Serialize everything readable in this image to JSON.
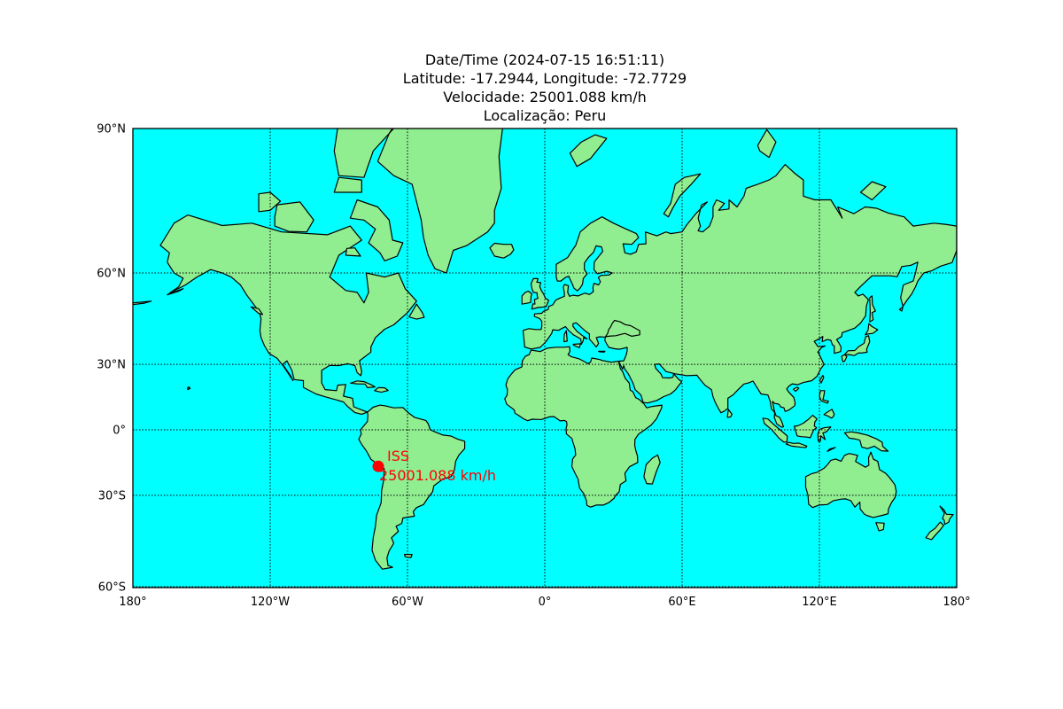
{
  "title": {
    "lines": [
      "Date/Time (2024-07-15 16:51:11)",
      "Latitude: -17.2944, Longitude: -72.7729",
      "Velocidade: 25001.088 km/h",
      "Localização: Peru"
    ]
  },
  "map": {
    "projection": "mercator",
    "lon_range": [
      -180,
      180
    ],
    "lat_range": [
      -60,
      90
    ],
    "ocean_color": "#00ffff",
    "land_color": "#90ee90",
    "coast_color": "#000000",
    "grid": "dotted",
    "lat_ticks": [
      {
        "value": 90,
        "label": "90°N"
      },
      {
        "value": 60,
        "label": "60°N"
      },
      {
        "value": 30,
        "label": "30°N"
      },
      {
        "value": 0,
        "label": "0°"
      },
      {
        "value": -30,
        "label": "30°S"
      },
      {
        "value": -60,
        "label": "60°S"
      }
    ],
    "lon_ticks": [
      {
        "value": -180,
        "label": "180°"
      },
      {
        "value": -120,
        "label": "120°W"
      },
      {
        "value": -60,
        "label": "60°W"
      },
      {
        "value": 0,
        "label": "0°"
      },
      {
        "value": 60,
        "label": "60°E"
      },
      {
        "value": 120,
        "label": "120°E"
      },
      {
        "value": 180,
        "label": "180°"
      }
    ]
  },
  "iss": {
    "lat": -17.2944,
    "lon": -72.7729,
    "name": "ISS",
    "speed_label": "25001.088 km/h",
    "color": "#ff0000"
  }
}
